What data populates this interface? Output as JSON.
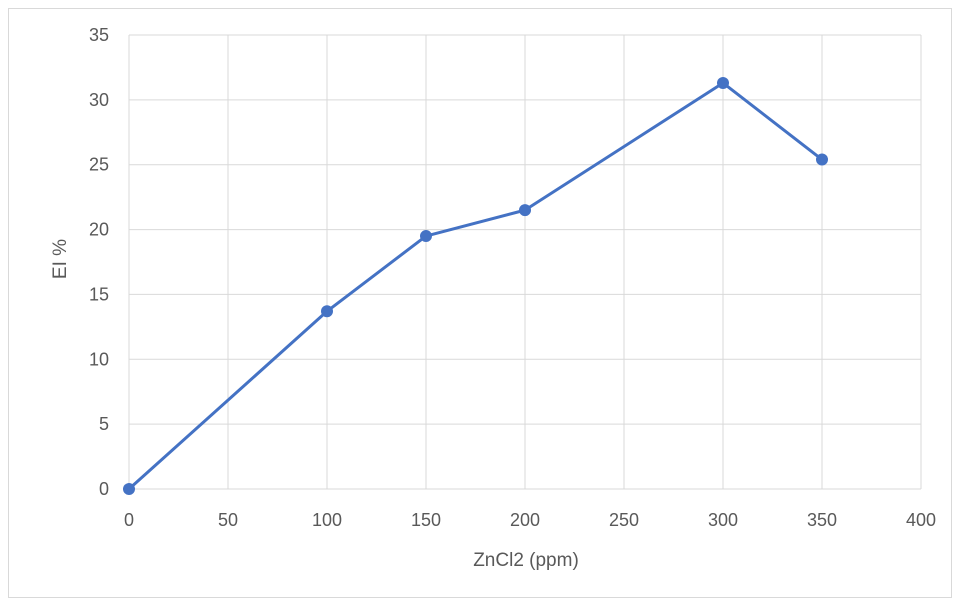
{
  "chart_data": {
    "type": "line",
    "title": "",
    "xlabel": "ZnCl2 (ppm)",
    "ylabel": "EI %",
    "xlim": [
      0,
      400
    ],
    "ylim": [
      0,
      35
    ],
    "x_ticks": [
      0,
      50,
      100,
      150,
      200,
      250,
      300,
      350,
      400
    ],
    "y_ticks": [
      0,
      5,
      10,
      15,
      20,
      25,
      30,
      35
    ],
    "grid": true,
    "legend": "none",
    "series": [
      {
        "x": [
          0,
          100,
          150,
          200,
          300,
          350
        ],
        "y": [
          0,
          13.7,
          19.5,
          21.5,
          31.3,
          25.4
        ],
        "color": "#4472c4",
        "marker": "circle"
      }
    ]
  },
  "colors": {
    "series": "#4472c4",
    "grid": "#d9d9d9",
    "text": "#595959",
    "frame": "#d9d9d9"
  }
}
